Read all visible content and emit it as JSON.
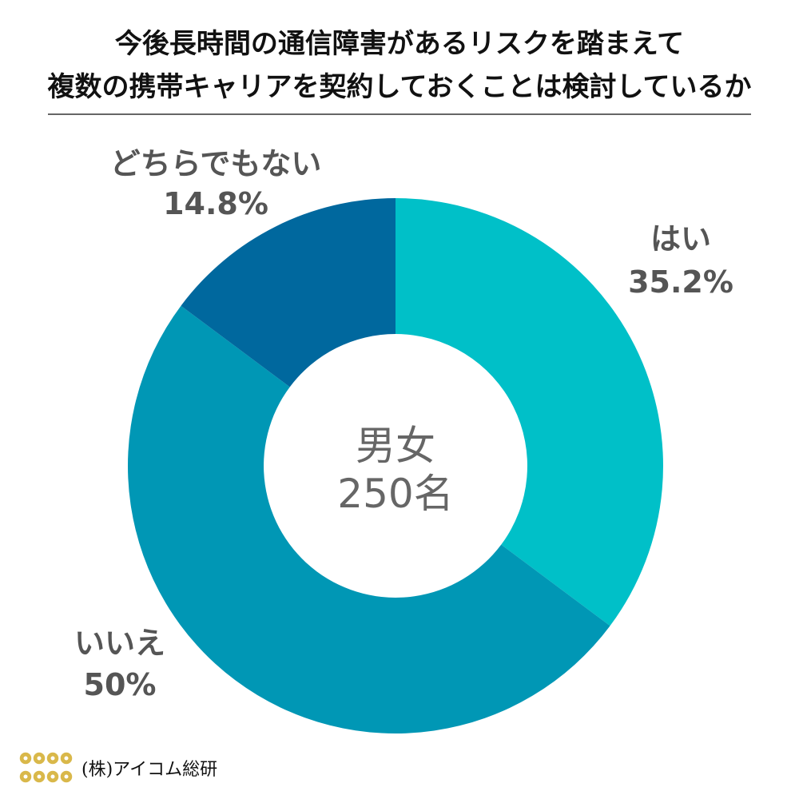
{
  "title": {
    "line1": "今後長時間の通信障害があるリスクを踏まえて",
    "line2": "複数の携帯キャリアを契約しておくことは検討しているか"
  },
  "center_label": {
    "line1": "男女",
    "line2": "250名"
  },
  "footer": {
    "brand": "(株)アイコム総研",
    "logo_icon": "coin-grid-icon"
  },
  "chart_data": {
    "type": "pie",
    "donut": true,
    "title": "今後長時間の通信障害があるリスクを踏まえて複数の携帯キャリアを契約しておくことは検討しているか",
    "slices": [
      {
        "label": "はい",
        "value": 35.2,
        "value_label": "35.2%",
        "color": "#00c0c8"
      },
      {
        "label": "いいえ",
        "value": 50,
        "value_label": "50%",
        "color": "#0097b5"
      },
      {
        "label": "どちらでもない",
        "value": 14.8,
        "value_label": "14.8%",
        "color": "#00689e"
      }
    ],
    "start": "12 o'clock",
    "direction": "clockwise",
    "label_color": "#555555",
    "center_text_color": "#666666"
  }
}
